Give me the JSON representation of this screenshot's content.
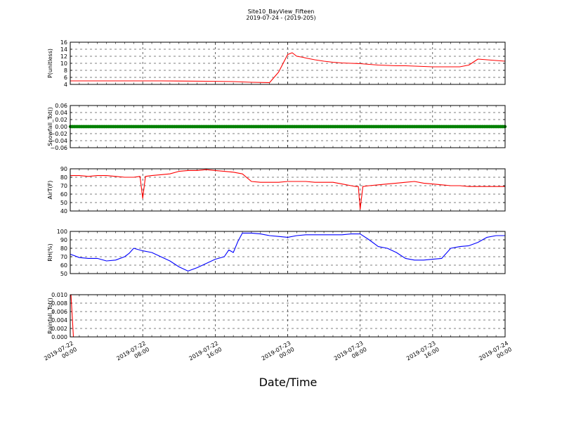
{
  "figure": {
    "title": "Site10_BayView_Fifteen",
    "subtitle": "2019-07-24 - (2019-205)",
    "xlabel": "Date/Time"
  },
  "x_ticks": [
    {
      "t": 0,
      "line1": "2019-07-22",
      "line2": "00:00"
    },
    {
      "t": 8,
      "line1": "2019-07-22",
      "line2": "08:00"
    },
    {
      "t": 16,
      "line1": "2019-07-22",
      "line2": "16:00"
    },
    {
      "t": 24,
      "line1": "2019-07-23",
      "line2": "00:00"
    },
    {
      "t": 32,
      "line1": "2019-07-23",
      "line2": "08:00"
    },
    {
      "t": 40,
      "line1": "2019-07-23",
      "line2": "16:00"
    },
    {
      "t": 48,
      "line1": "2019-07-24",
      "line2": "00:00"
    }
  ],
  "chart_data": [
    {
      "type": "line",
      "ylabel": "P(unitless)",
      "ylim": [
        4,
        16
      ],
      "yticks": [
        "4",
        "6",
        "8",
        "10",
        "12",
        "14",
        "16"
      ],
      "grid": true,
      "series": [
        {
          "color": "#ff0000",
          "x": [
            0,
            5,
            10,
            15,
            18,
            19,
            20,
            22,
            23,
            24,
            24.5,
            25,
            25.7,
            26,
            27,
            28,
            29,
            30,
            31,
            32,
            33,
            34,
            35,
            36,
            37,
            38,
            39,
            40,
            41,
            42,
            43,
            44,
            45,
            46,
            47,
            48
          ],
          "y": [
            5,
            5,
            5,
            4.9,
            4.8,
            4.7,
            4.6,
            4.5,
            7.5,
            12.5,
            13,
            12,
            11.7,
            11.5,
            11,
            10.6,
            10.3,
            10.1,
            10.0,
            9.9,
            9.7,
            9.5,
            9.4,
            9.3,
            9.3,
            9.2,
            9.1,
            9.0,
            9.0,
            9.0,
            9.0,
            9.5,
            11.2,
            11.0,
            10.8,
            10.6
          ]
        }
      ]
    },
    {
      "type": "line",
      "ylabel": "Snowfall_Tot()",
      "ylim": [
        -0.06,
        0.06
      ],
      "yticks": [
        "−0.06",
        "−0.04",
        "−0.02",
        "0.00",
        "0.02",
        "0.04",
        "0.06"
      ],
      "grid": true,
      "series": [
        {
          "color": "#008000",
          "marker": "dot",
          "x": [
            0,
            48
          ],
          "y": [
            0,
            0
          ]
        }
      ]
    },
    {
      "type": "line",
      "ylabel": "AirT(F)",
      "ylim": [
        40,
        90
      ],
      "yticks": [
        "40",
        "50",
        "60",
        "70",
        "80",
        "90"
      ],
      "grid": true,
      "series": [
        {
          "color": "#ff0000",
          "x": [
            0,
            1,
            2,
            3,
            4,
            5,
            6,
            7,
            7.7,
            8,
            8.3,
            9,
            10,
            11,
            12,
            13,
            14,
            15,
            16,
            17,
            18,
            19,
            20,
            21,
            22,
            23,
            24,
            25,
            26,
            27,
            28,
            29,
            30,
            31,
            31.5,
            31.8,
            32,
            32.3,
            33,
            34,
            35,
            36,
            37,
            38,
            39,
            40,
            41,
            42,
            43,
            44,
            45,
            46,
            47,
            48
          ],
          "y": [
            82,
            82,
            81,
            82,
            82,
            81,
            80,
            80,
            81,
            55,
            81,
            82,
            83,
            84,
            87,
            88,
            88,
            89,
            88,
            87,
            86,
            84,
            75,
            74,
            74,
            74,
            75,
            75,
            75,
            74,
            74,
            74,
            72,
            70,
            69,
            69,
            42,
            69,
            70,
            71,
            72,
            73,
            74,
            75,
            73,
            72,
            71,
            70,
            70,
            69,
            69,
            69,
            69,
            69
          ]
        }
      ]
    },
    {
      "type": "line",
      "ylabel": "RH(%)",
      "ylim": [
        50,
        100
      ],
      "yticks": [
        "50",
        "60",
        "70",
        "80",
        "90",
        "100"
      ],
      "grid": true,
      "series": [
        {
          "color": "#0000ff",
          "x": [
            0,
            1,
            2,
            3,
            4,
            5,
            6,
            6.5,
            7,
            8,
            9,
            10,
            11,
            12,
            13,
            14,
            15,
            16,
            17,
            17.5,
            18,
            18.5,
            19,
            20,
            21,
            22,
            23,
            24,
            25,
            26,
            27,
            28,
            29,
            30,
            31,
            32,
            33,
            34,
            35,
            36,
            37,
            38,
            39,
            40,
            41,
            42,
            43,
            44,
            45,
            46,
            47,
            48
          ],
          "y": [
            73,
            69,
            68,
            68,
            65,
            66,
            70,
            74,
            80,
            77,
            75,
            70,
            65,
            58,
            53,
            57,
            62,
            67,
            70,
            78,
            75,
            88,
            98,
            98,
            97,
            95,
            94,
            93,
            95,
            96,
            96,
            96,
            96,
            96,
            97,
            97,
            90,
            82,
            80,
            75,
            68,
            66,
            66,
            67,
            68,
            80,
            82,
            83,
            87,
            93,
            95,
            95
          ]
        }
      ]
    },
    {
      "type": "line",
      "ylabel": "Rainfall_Tot()",
      "ylim": [
        0,
        0.01
      ],
      "yticks": [
        "0.000",
        "0.002",
        "0.004",
        "0.006",
        "0.008",
        "0.010"
      ],
      "grid": true,
      "series": [
        {
          "color": "#ff0000",
          "x": [
            0,
            0.08,
            0.35,
            48
          ],
          "y": [
            0.01,
            0.01,
            0,
            0
          ]
        }
      ]
    }
  ]
}
